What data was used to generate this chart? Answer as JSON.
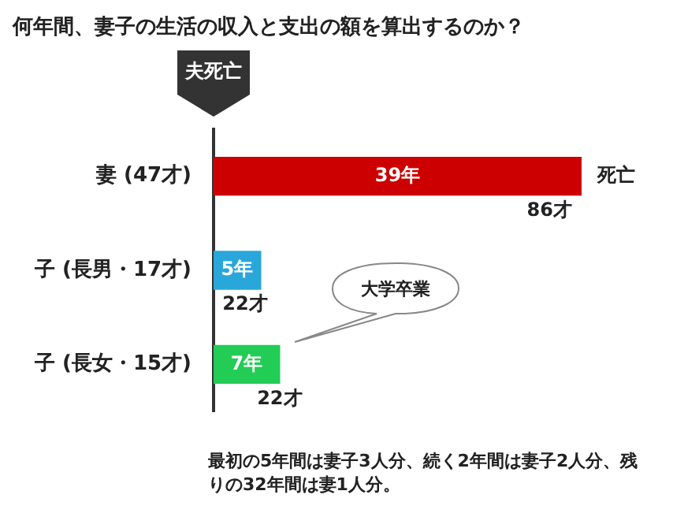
{
  "chart_data": {
    "type": "bar",
    "orientation": "horizontal",
    "title": "何年間、妻子の生活の収入と支出の額を算出するのか？",
    "categories": [
      "妻 (47才)",
      "子 (長男・17才)",
      "子 (長女・15才)"
    ],
    "values": [
      39,
      5,
      7
    ],
    "colors": [
      "#cc0000",
      "#2aa7da",
      "#22cc55"
    ],
    "value_labels": [
      "39年",
      "5年",
      "7年"
    ],
    "tick_labels": "y",
    "annotations": [
      {
        "text": "死亡",
        "x": 39,
        "y": "妻 (47才)"
      },
      {
        "text": "86才",
        "x": 39,
        "y": "妻 (47才)"
      },
      {
        "text": "22才",
        "x": 5,
        "y": "子 (長男・17才)"
      },
      {
        "text": "22才",
        "x": 7,
        "y": "子 (長女・15才)"
      },
      "大学卒業",
      "夫死亡",
      "最初の5年間は妻子3人分、続く2年間は妻子2人分、残りの32年間は妻1人分。"
    ]
  }
}
